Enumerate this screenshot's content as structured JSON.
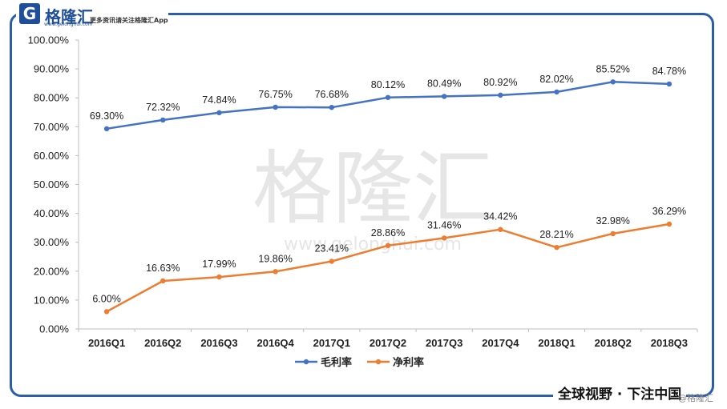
{
  "header": {
    "logo_letter": "G",
    "logo_name": "格隆汇",
    "logo_url": "www.gelonghui.com",
    "tagline": "更多资讯请关注格隆汇App"
  },
  "footer": {
    "slogan": "全球视野 · 下注中国",
    "watermark": "@格隆汇"
  },
  "watermark": {
    "name": "格隆汇",
    "url": "www.gelonghui.com"
  },
  "chart_data": {
    "type": "line",
    "categories": [
      "2016Q1",
      "2016Q2",
      "2016Q3",
      "2016Q4",
      "2017Q1",
      "2017Q2",
      "2017Q3",
      "2017Q4",
      "2018Q1",
      "2018Q2",
      "2018Q3"
    ],
    "yticks": [
      "0.00%",
      "10.00%",
      "20.00%",
      "30.00%",
      "40.00%",
      "50.00%",
      "60.00%",
      "70.00%",
      "80.00%",
      "90.00%",
      "100.00%"
    ],
    "ylim": [
      0,
      100
    ],
    "series": [
      {
        "name": "毛利率",
        "color": "#4472c4",
        "values": [
          69.3,
          72.32,
          74.84,
          76.75,
          76.68,
          80.12,
          80.49,
          80.92,
          82.02,
          85.52,
          84.78
        ],
        "labels": [
          "69.30%",
          "72.32%",
          "74.84%",
          "76.75%",
          "76.68%",
          "80.12%",
          "80.49%",
          "80.92%",
          "82.02%",
          "85.52%",
          "84.78%"
        ]
      },
      {
        "name": "净利率",
        "color": "#ed7d31",
        "values": [
          6.0,
          16.63,
          17.99,
          19.86,
          23.41,
          28.86,
          31.46,
          34.42,
          28.21,
          32.98,
          36.29
        ],
        "labels": [
          "6.00%",
          "16.63%",
          "17.99%",
          "19.86%",
          "23.41%",
          "28.86%",
          "31.46%",
          "34.42%",
          "28.21%",
          "32.98%",
          "36.29%"
        ]
      }
    ],
    "legend": "bottom",
    "grid": false
  }
}
